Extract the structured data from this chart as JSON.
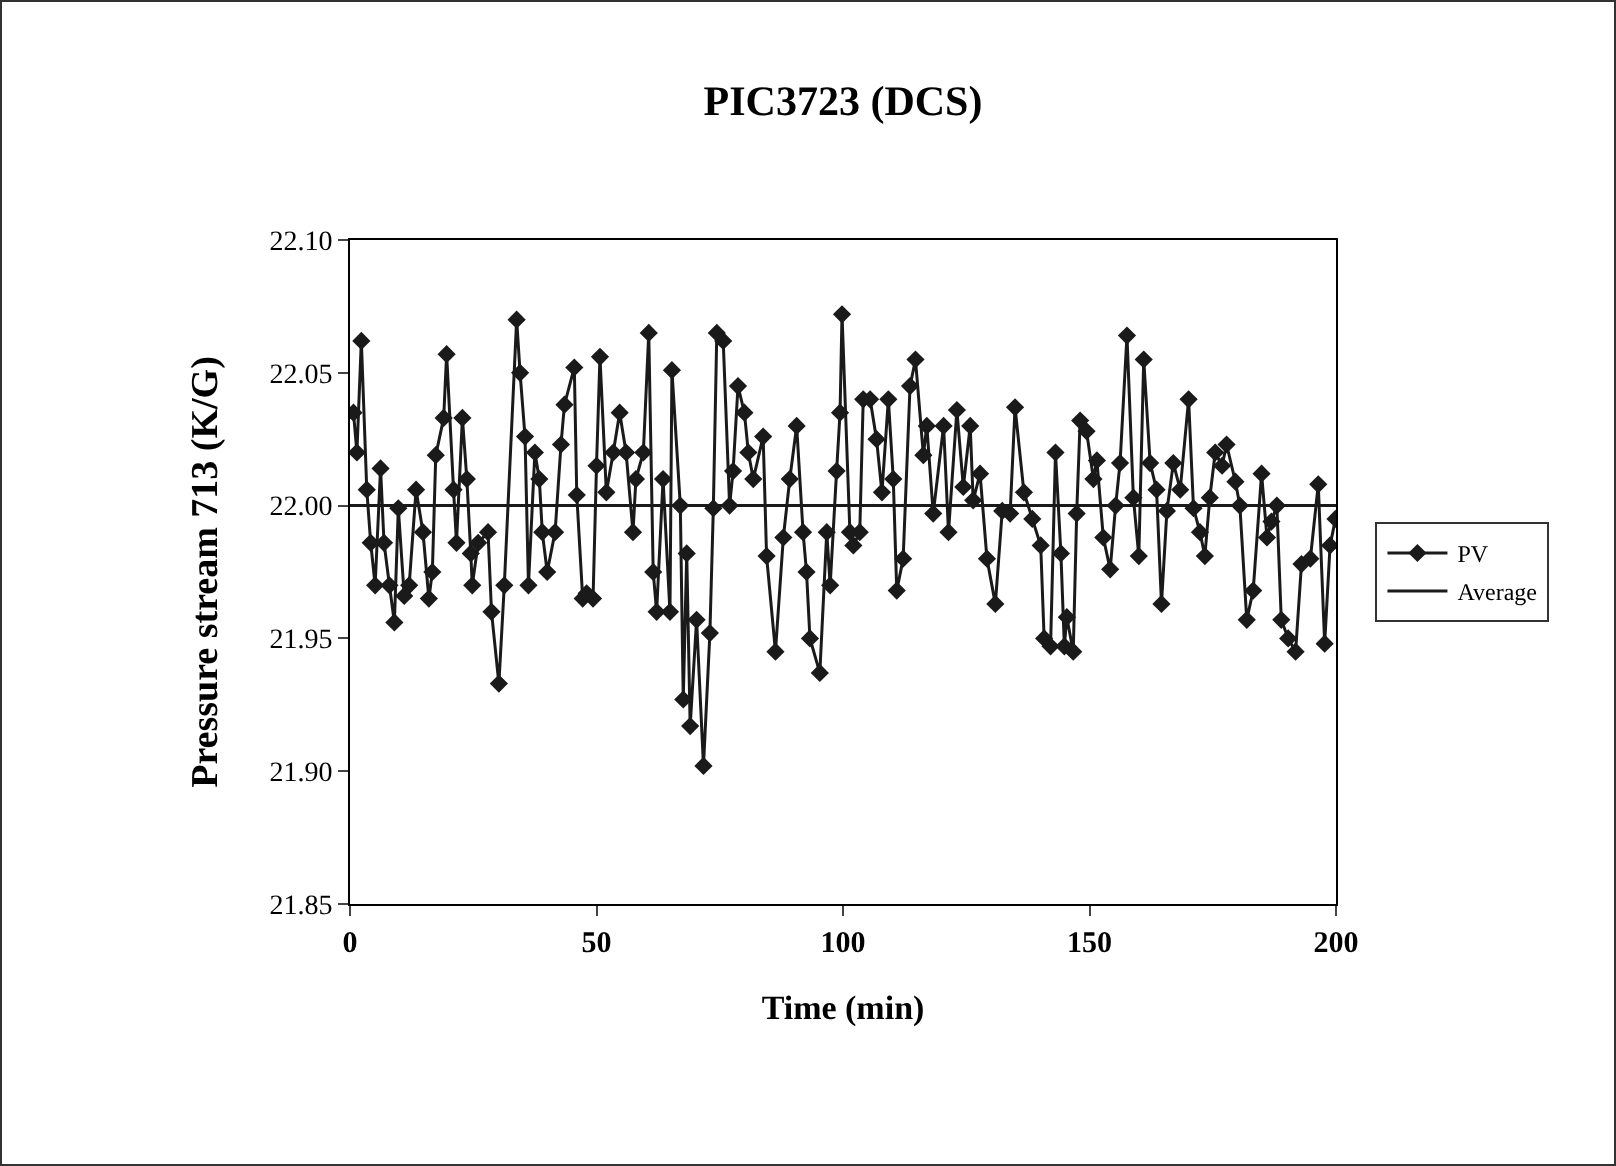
{
  "chart_data": {
    "type": "line",
    "title": "PIC3723 (DCS)",
    "xlabel": "Time (min)",
    "ylabel": "Pressure stream 713 (K/G)",
    "series": [
      {
        "name": "PV",
        "color": "#1a1a1a",
        "marker": "diamond",
        "x": [
          0.7,
          1.4,
          2.3,
          3.4,
          4.2,
          5.1,
          6.2,
          6.9,
          8,
          9,
          9.8,
          11,
          12,
          13.4,
          14.8,
          16,
          16.7,
          17.4,
          19,
          19.6,
          21,
          21.6,
          22.8,
          23.7,
          24.5,
          24.8,
          26,
          28,
          28.7,
          30.2,
          31.3,
          33.8,
          34.5,
          35.5,
          36.2,
          37.5,
          38.4,
          39,
          40,
          41.6,
          42.8,
          43.5,
          45.5,
          46,
          47.2,
          48,
          49.3,
          50,
          50.7,
          52,
          53.4,
          54.7,
          56,
          57.4,
          58,
          59.5,
          60.6,
          61.5,
          62.2,
          63.5,
          64.9,
          65.3,
          67,
          67.6,
          68.3,
          69,
          70.3,
          71.7,
          73,
          73.7,
          74.4,
          75.7,
          77,
          77.7,
          78.7,
          80,
          80.8,
          81.8,
          83.8,
          84.5,
          86.3,
          87.9,
          89.2,
          90.6,
          91.9,
          92.6,
          93.3,
          95.3,
          96.7,
          97.4,
          98.7,
          99.4,
          99.8,
          101.4,
          102.1,
          103.4,
          104.1,
          105.5,
          106.8,
          107.9,
          109.2,
          110.2,
          110.9,
          112.2,
          113.6,
          114.7,
          116.3,
          117,
          118.3,
          120.4,
          121.4,
          123.1,
          124.4,
          125.8,
          126.4,
          127.8,
          129.2,
          130.9,
          132.3,
          133.9,
          134.9,
          136.7,
          138.4,
          140.1,
          140.8,
          142.1,
          143.1,
          144.2,
          144.9,
          145.4,
          146.7,
          147.4,
          148.1,
          149.4,
          150.8,
          151.5,
          152.8,
          154.2,
          155.3,
          156.2,
          157.6,
          158.9,
          160,
          161,
          162.3,
          163.6,
          164.6,
          165.7,
          167,
          168.4,
          170.1,
          171.1,
          172.4,
          173.4,
          174.4,
          175.5,
          176.9,
          177.8,
          179.6,
          180.5,
          181.9,
          183.2,
          184.9,
          186,
          186.9,
          188,
          188.9,
          190.3,
          191.8,
          193,
          194.8,
          196.4,
          197.7,
          198.8,
          199.9
        ],
        "values": [
          22.035,
          22.02,
          22.062,
          22.006,
          21.986,
          21.97,
          22.014,
          21.986,
          21.97,
          21.956,
          21.999,
          21.966,
          21.97,
          22.006,
          21.99,
          21.965,
          21.975,
          22.019,
          22.033,
          22.057,
          22.006,
          21.986,
          22.033,
          22.01,
          21.982,
          21.97,
          21.986,
          21.99,
          21.96,
          21.933,
          21.97,
          22.07,
          22.05,
          22.026,
          21.97,
          22.02,
          22.01,
          21.99,
          21.975,
          21.99,
          22.023,
          22.038,
          22.052,
          22.004,
          21.965,
          21.967,
          21.965,
          22.015,
          22.056,
          22.005,
          22.02,
          22.035,
          22.02,
          21.99,
          22.01,
          22.02,
          22.065,
          21.975,
          21.96,
          22.01,
          21.96,
          22.051,
          22.0,
          21.927,
          21.982,
          21.917,
          21.957,
          21.902,
          21.952,
          21.999,
          22.065,
          22.062,
          22.0,
          22.013,
          22.045,
          22.035,
          22.02,
          22.01,
          22.026,
          21.981,
          21.945,
          21.988,
          22.01,
          22.03,
          21.99,
          21.975,
          21.95,
          21.937,
          21.99,
          21.97,
          22.013,
          22.035,
          22.072,
          21.99,
          21.985,
          21.99,
          22.04,
          22.04,
          22.025,
          22.005,
          22.04,
          22.01,
          21.968,
          21.98,
          22.045,
          22.055,
          22.019,
          22.03,
          21.997,
          22.03,
          21.99,
          22.036,
          22.007,
          22.03,
          22.002,
          22.012,
          21.98,
          21.963,
          21.998,
          21.997,
          22.037,
          22.005,
          21.995,
          21.985,
          21.95,
          21.947,
          22.02,
          21.982,
          21.947,
          21.958,
          21.945,
          21.997,
          22.032,
          22.028,
          22.01,
          22.017,
          21.988,
          21.976,
          22.0,
          22.016,
          22.064,
          22.003,
          21.981,
          22.055,
          22.016,
          22.006,
          21.963,
          21.998,
          22.016,
          22.006,
          22.04,
          21.999,
          21.99,
          21.981,
          22.003,
          22.02,
          22.015,
          22.023,
          22.009,
          22.0,
          21.957,
          21.968,
          22.012,
          21.988,
          21.994,
          22.0,
          21.957,
          21.95,
          21.945,
          21.978,
          21.98,
          22.008,
          21.948,
          21.985,
          21.995
        ]
      },
      {
        "name": "Average",
        "color": "#1a1a1a",
        "marker": "none",
        "x": [
          0,
          200
        ],
        "values": [
          22.0,
          22.0
        ]
      }
    ],
    "xlim": [
      0,
      200
    ],
    "xticks": [
      0,
      50,
      100,
      150,
      200
    ],
    "ylim": [
      21.85,
      22.1
    ],
    "yticks": [
      {
        "value": 21.85,
        "label": "21.85"
      },
      {
        "value": 21.9,
        "label": "21.90"
      },
      {
        "value": 21.95,
        "label": "21.95"
      },
      {
        "value": 22.0,
        "label": "22.00"
      },
      {
        "value": 22.05,
        "label": "22.05"
      },
      {
        "value": 22.1,
        "label": "22.10"
      }
    ],
    "grid": false,
    "legend": "right",
    "line_style": "solid"
  }
}
